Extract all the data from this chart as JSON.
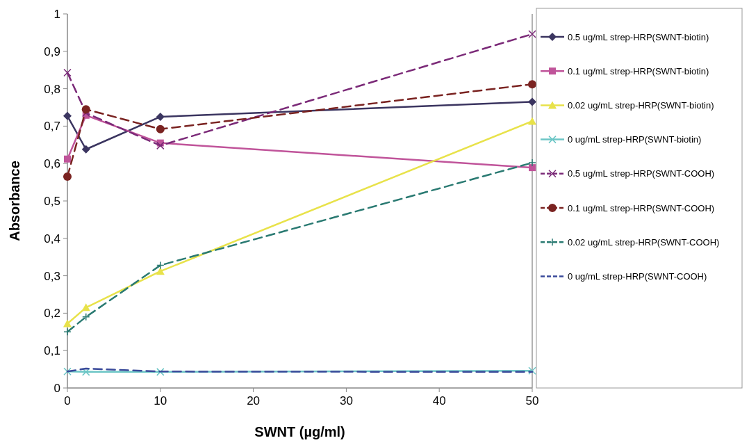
{
  "chart_data": {
    "type": "line",
    "xlabel": "SWNT (µg/ml)",
    "ylabel": "Absorbance",
    "x": [
      0,
      2,
      10,
      50
    ],
    "series": [
      {
        "name": "0.5 ug/mL strep-HRP(SWNT-biotin)",
        "color": "#3b3560",
        "marker": "diamond",
        "line_style": "solid",
        "values": [
          0.727,
          0.638,
          0.725,
          0.765
        ]
      },
      {
        "name": "0.1 ug/mL strep-HRP(SWNT-biotin)",
        "color": "#c0549a",
        "marker": "square",
        "line_style": "solid",
        "values": [
          0.612,
          0.729,
          0.655,
          0.589
        ]
      },
      {
        "name": "0.02 ug/mL strep-HRP(SWNT-biotin)",
        "color": "#e8e24a",
        "marker": "triangle",
        "line_style": "solid",
        "values": [
          0.172,
          0.215,
          0.312,
          0.713
        ]
      },
      {
        "name": "0 ug/mL strep-HRP(SWNT-biotin)",
        "color": "#6cc6c6",
        "marker": "cross",
        "line_style": "solid",
        "values": [
          0.044,
          0.043,
          0.043,
          0.046
        ]
      },
      {
        "name": "0.5 ug/mL strep-HRP(SWNT-COOH)",
        "color": "#7b2a78",
        "marker": "cross",
        "line_style": "dashed",
        "values": [
          0.843,
          0.735,
          0.648,
          0.946
        ]
      },
      {
        "name": "0.1 ug/mL strep-HRP(SWNT-COOH)",
        "color": "#7a2321",
        "marker": "circle",
        "line_style": "dashed",
        "values": [
          0.565,
          0.745,
          0.692,
          0.812
        ]
      },
      {
        "name": "0.02 ug/mL strep-HRP(SWNT-COOH)",
        "color": "#2a7a72",
        "marker": "plus",
        "line_style": "dashed",
        "values": [
          0.15,
          0.19,
          0.328,
          0.602
        ]
      },
      {
        "name": "0 ug/mL strep-HRP(SWNT-COOH)",
        "color": "#3a4a9a",
        "marker": "none",
        "line_style": "dashed",
        "values": [
          0.044,
          0.052,
          0.044,
          0.043
        ]
      }
    ],
    "xlim": [
      0,
      50
    ],
    "xticks": [
      0,
      10,
      20,
      30,
      40,
      50
    ],
    "ylim": [
      0,
      1
    ],
    "yticks": [
      0,
      {
        "value": 0.1,
        "label": "0,1"
      },
      {
        "value": 0.2,
        "label": "0,2"
      },
      {
        "value": 0.3,
        "label": "0,3"
      },
      {
        "value": 0.4,
        "label": "0,4"
      },
      {
        "value": 0.5,
        "label": "0,5"
      },
      {
        "value": 0.6,
        "label": "0,6"
      },
      {
        "value": 0.7,
        "label": "0,7"
      },
      {
        "value": 0.8,
        "label": "0,8"
      },
      {
        "value": 0.9,
        "label": "0,9"
      },
      1
    ],
    "grid": false,
    "legend": "right"
  }
}
